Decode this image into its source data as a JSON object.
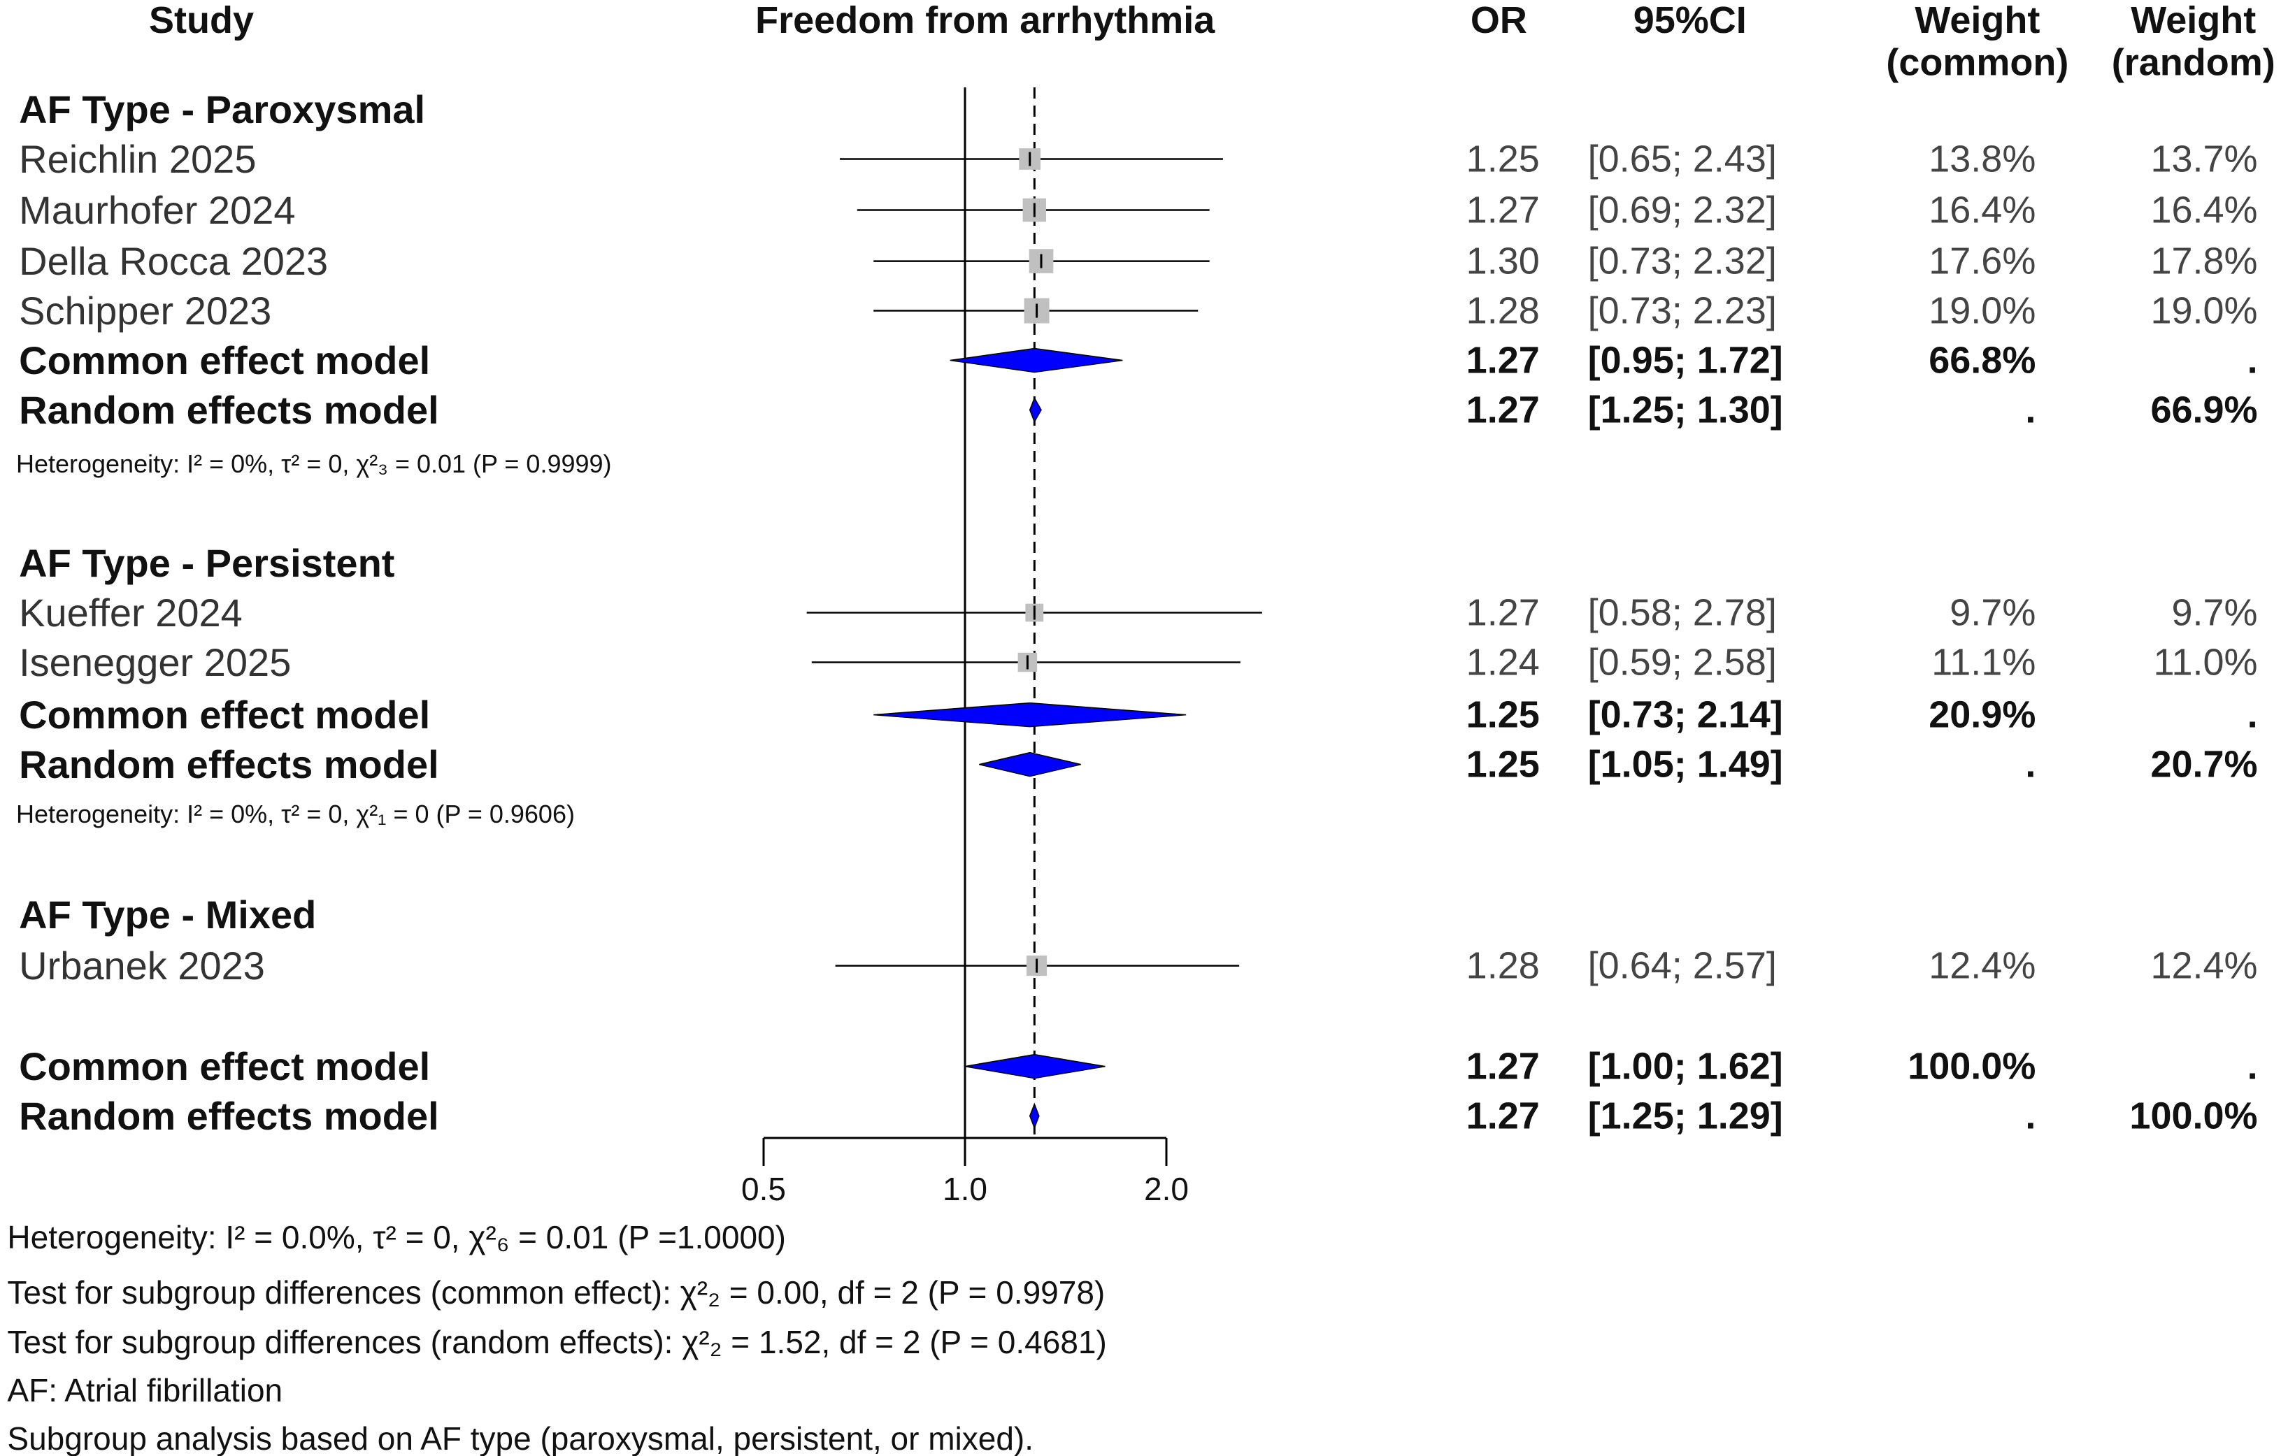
{
  "chart_data": {
    "type": "forest",
    "headers": {
      "study": "Study",
      "plot": "Freedom from arrhythmia",
      "or": "OR",
      "ci": "95%CI",
      "weight_common": [
        "Weight",
        "(common)"
      ],
      "weight_random": [
        "Weight",
        "(random)"
      ]
    },
    "x_axis": {
      "scale": "log",
      "ticks": [
        0.5,
        1.0,
        2.0
      ],
      "tick_labels": [
        "0.5",
        "1.0",
        "2.0"
      ],
      "reference_line": 1.0,
      "overall_effect_line": 1.27
    },
    "colors": {
      "square": "#c0c0c0",
      "diamond": "#0000ff",
      "line": "#000000"
    },
    "groups": [
      {
        "label": "AF Type - Paroxysmal",
        "studies": [
          {
            "name": "Reichlin 2025",
            "or": 1.25,
            "lo": 0.65,
            "hi": 2.43,
            "or_text": "1.25",
            "ci_text": "[0.65; 2.43]",
            "w_common": "13.8%",
            "w_random": "13.7%"
          },
          {
            "name": "Maurhofer 2024",
            "or": 1.27,
            "lo": 0.69,
            "hi": 2.32,
            "or_text": "1.27",
            "ci_text": "[0.69; 2.32]",
            "w_common": "16.4%",
            "w_random": "16.4%"
          },
          {
            "name": "Della Rocca 2023",
            "or": 1.3,
            "lo": 0.73,
            "hi": 2.32,
            "or_text": "1.30",
            "ci_text": "[0.73; 2.32]",
            "w_common": "17.6%",
            "w_random": "17.8%"
          },
          {
            "name": "Schipper 2023",
            "or": 1.28,
            "lo": 0.73,
            "hi": 2.23,
            "or_text": "1.28",
            "ci_text": "[0.73; 2.23]",
            "w_common": "19.0%",
            "w_random": "19.0%"
          }
        ],
        "models": [
          {
            "name": "Common effect model",
            "or": 1.27,
            "lo": 0.95,
            "hi": 1.72,
            "or_text": "1.27",
            "ci_text": "[0.95; 1.72]",
            "w_common": "66.8%",
            "w_random": "."
          },
          {
            "name": "Random effects model",
            "or": 1.27,
            "lo": 1.25,
            "hi": 1.3,
            "or_text": "1.27",
            "ci_text": "[1.25; 1.30]",
            "w_common": ".",
            "w_random": "66.9%"
          }
        ],
        "heterogeneity": "Heterogeneity: I² = 0%, τ² = 0, χ²₃ = 0.01 (P = 0.9999)"
      },
      {
        "label": "AF Type - Persistent",
        "studies": [
          {
            "name": "Kueffer 2024",
            "or": 1.27,
            "lo": 0.58,
            "hi": 2.78,
            "or_text": "1.27",
            "ci_text": "[0.58; 2.78]",
            "w_common": "9.7%",
            "w_random": "9.7%"
          },
          {
            "name": "Isenegger 2025",
            "or": 1.24,
            "lo": 0.59,
            "hi": 2.58,
            "or_text": "1.24",
            "ci_text": "[0.59; 2.58]",
            "w_common": "11.1%",
            "w_random": "11.0%"
          }
        ],
        "models": [
          {
            "name": "Common effect model",
            "or": 1.25,
            "lo": 0.73,
            "hi": 2.14,
            "or_text": "1.25",
            "ci_text": "[0.73; 2.14]",
            "w_common": "20.9%",
            "w_random": "."
          },
          {
            "name": "Random effects model",
            "or": 1.25,
            "lo": 1.05,
            "hi": 1.49,
            "or_text": "1.25",
            "ci_text": "[1.05; 1.49]",
            "w_common": ".",
            "w_random": "20.7%"
          }
        ],
        "heterogeneity": "Heterogeneity: I² = 0%, τ² = 0, χ²₁ = 0 (P = 0.9606)"
      },
      {
        "label": "AF Type - Mixed",
        "studies": [
          {
            "name": "Urbanek 2023",
            "or": 1.28,
            "lo": 0.64,
            "hi": 2.57,
            "or_text": "1.28",
            "ci_text": "[0.64; 2.57]",
            "w_common": "12.4%",
            "w_random": "12.4%"
          }
        ],
        "models": [],
        "heterogeneity": ""
      }
    ],
    "overall": [
      {
        "name": "Common effect model",
        "or": 1.27,
        "lo": 1.0,
        "hi": 1.62,
        "or_text": "1.27",
        "ci_text": "[1.00; 1.62]",
        "w_common": "100.0%",
        "w_random": "."
      },
      {
        "name": "Random effects model",
        "or": 1.27,
        "lo": 1.25,
        "hi": 1.29,
        "or_text": "1.27",
        "ci_text": "[1.25; 1.29]",
        "w_common": ".",
        "w_random": "100.0%"
      }
    ],
    "footer": [
      "Heterogeneity: I² = 0.0%, τ² = 0, χ²₆ = 0.01 (P =1.0000)",
      "Test for subgroup differences (common effect): χ²₂ = 0.00, df = 2 (P = 0.9978)",
      "Test for subgroup differences (random effects): χ²₂ = 1.52, df = 2 (P = 0.4681)",
      "AF: Atrial fibrillation",
      "Subgroup analysis based on AF type (paroxysmal, persistent, or mixed)."
    ]
  }
}
